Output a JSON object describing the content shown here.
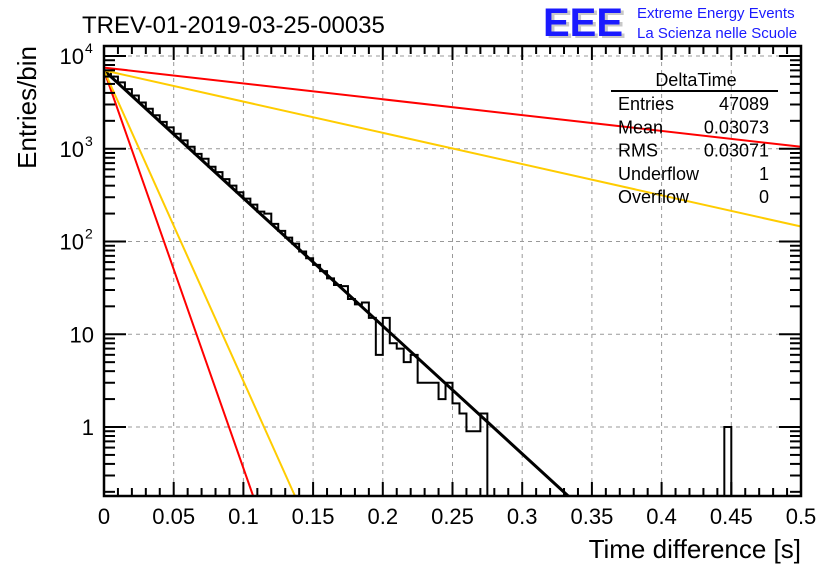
{
  "header": {
    "title": "TREV-01-2019-03-25-00035",
    "logo_text": "EEE",
    "logo_line1": "Extreme Energy Events",
    "logo_line2": "La Scienza nelle Scuole"
  },
  "stats_box": {
    "title": "DeltaTime",
    "rows": [
      {
        "label": "Entries",
        "value": "47089"
      },
      {
        "label": "Mean",
        "value": "0.03073"
      },
      {
        "label": "RMS",
        "value": "0.03071"
      },
      {
        "label": "Underflow",
        "value": "1"
      },
      {
        "label": "Overflow",
        "value": "0"
      }
    ]
  },
  "chart_data": {
    "type": "bar",
    "title": "TREV-01-2019-03-25-00035",
    "xlabel": "Time difference [s]",
    "ylabel": "Entries/bin",
    "xlim": [
      0,
      0.5
    ],
    "ylim": [
      0.18,
      13000
    ],
    "yscale": "log",
    "grid": true,
    "legend": "top-right",
    "x_ticks": [
      "0",
      "0.05",
      "0.1",
      "0.15",
      "0.2",
      "0.25",
      "0.3",
      "0.35",
      "0.4",
      "0.45",
      "0.5"
    ],
    "y_ticks": [
      {
        "value": 1,
        "base": "1",
        "exp": ""
      },
      {
        "value": 10,
        "base": "10",
        "exp": ""
      },
      {
        "value": 100,
        "base": "10",
        "exp": "2"
      },
      {
        "value": 1000,
        "base": "10",
        "exp": "3"
      },
      {
        "value": 10000,
        "base": "10",
        "exp": "4"
      }
    ],
    "bin_width": 0.005,
    "histogram": {
      "name": "DeltaTime",
      "bin_low_edges": [
        0.0,
        0.005,
        0.01,
        0.015,
        0.02,
        0.025,
        0.03,
        0.035,
        0.04,
        0.045,
        0.05,
        0.055,
        0.06,
        0.065,
        0.07,
        0.075,
        0.08,
        0.085,
        0.09,
        0.095,
        0.1,
        0.105,
        0.11,
        0.115,
        0.12,
        0.125,
        0.13,
        0.135,
        0.14,
        0.145,
        0.15,
        0.155,
        0.16,
        0.165,
        0.17,
        0.175,
        0.18,
        0.185,
        0.19,
        0.195,
        0.2,
        0.205,
        0.21,
        0.215,
        0.22,
        0.225,
        0.23,
        0.235,
        0.24,
        0.245,
        0.25,
        0.255,
        0.26,
        0.265,
        0.27,
        0.275,
        0.28,
        0.285,
        0.29,
        0.295,
        0.3,
        0.305,
        0.31,
        0.315,
        0.32,
        0.325,
        0.445
      ],
      "counts": [
        7000,
        6000,
        5200,
        4400,
        3750,
        3150,
        2700,
        2300,
        1950,
        1700,
        1450,
        1230,
        1050,
        880,
        780,
        640,
        560,
        470,
        400,
        340,
        290,
        250,
        210,
        200,
        155,
        130,
        110,
        95,
        78,
        66,
        56,
        48,
        40,
        34,
        33,
        24,
        21,
        22,
        15,
        6,
        15,
        8,
        7,
        5,
        6,
        3,
        3,
        3,
        2,
        3,
        1.8,
        1.4,
        0.9,
        0.9,
        1.4,
        0,
        0,
        0,
        0,
        0,
        0,
        0,
        0,
        0,
        0,
        0,
        1
      ],
      "unit_bins": [
        0.265,
        0.27,
        0.275,
        0.28,
        0.285,
        0.3,
        0.31,
        0.445
      ]
    },
    "series": [
      {
        "name": "exponential fit",
        "color": "#000000",
        "x": [
          0,
          0.333
        ],
        "y": [
          7000,
          0.18
        ]
      },
      {
        "name": "red shallow",
        "color": "#ff0000",
        "x": [
          0,
          0.5
        ],
        "y": [
          7500,
          1050
        ]
      },
      {
        "name": "yellow shallow",
        "color": "#ffcc00",
        "x": [
          0,
          0.5
        ],
        "y": [
          7000,
          145
        ]
      },
      {
        "name": "red steep",
        "color": "#ff0000",
        "x": [
          0,
          0.107
        ],
        "y": [
          7000,
          0.18
        ]
      },
      {
        "name": "yellow steep",
        "color": "#ffcc00",
        "x": [
          0,
          0.137
        ],
        "y": [
          7000,
          0.18
        ]
      }
    ]
  },
  "colors": {
    "logo_blue": "#1a1aff",
    "fit_black": "#000000",
    "red": "#ff0000",
    "yellow": "#ffcc00",
    "grid": "#999999"
  }
}
